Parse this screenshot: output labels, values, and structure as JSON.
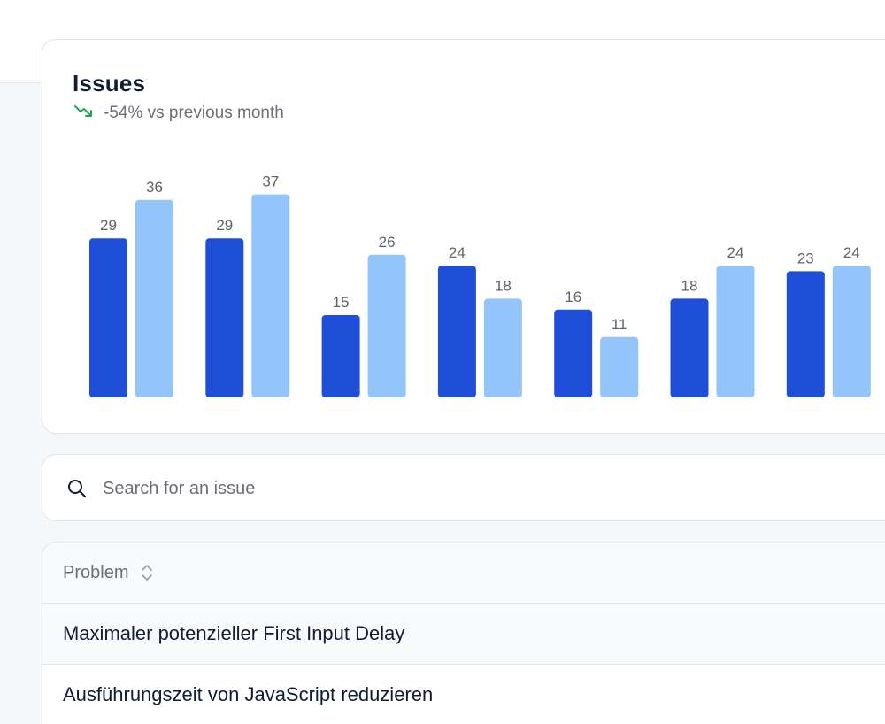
{
  "chart": {
    "title": "Issues",
    "trend": "-54% vs previous month"
  },
  "colors": {
    "primary_bar": "#1f4fd8",
    "secondary_bar": "#93c5fb",
    "trend_down": "#1faa4d"
  },
  "chart_data": {
    "type": "bar",
    "title": "Issues",
    "categories": [
      "",
      "",
      "",
      "",
      "",
      "",
      ""
    ],
    "series": [
      {
        "values": [
          29,
          29,
          15,
          24,
          16,
          18,
          23
        ]
      },
      {
        "values": [
          36,
          37,
          26,
          18,
          11,
          24,
          24
        ]
      }
    ],
    "ylim": [
      0,
      40
    ],
    "grid": false,
    "legend": "none"
  },
  "search": {
    "placeholder": "Search for an issue",
    "icon": "search-icon"
  },
  "table": {
    "header": {
      "problem_label": "Problem",
      "sort_icon": "sort-updown-icon"
    },
    "rows": [
      {
        "problem": "Maximaler potenzieller First Input Delay"
      },
      {
        "problem": "Ausführungszeit von JavaScript reduzieren"
      }
    ]
  }
}
